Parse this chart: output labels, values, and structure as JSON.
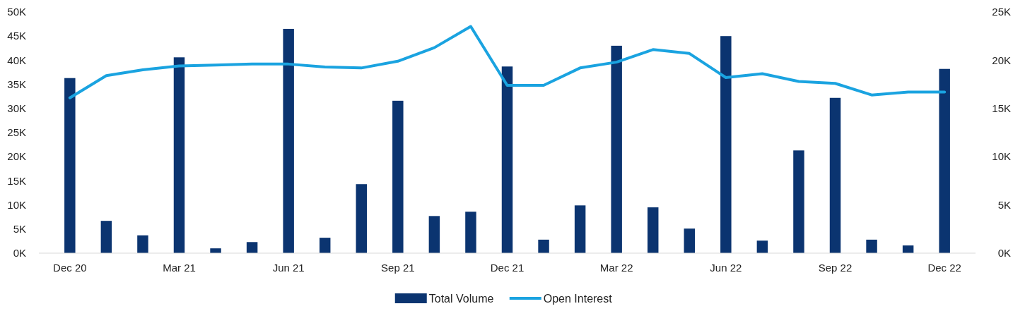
{
  "chart_data": {
    "type": "bar",
    "categories": [
      "Dec 20",
      null,
      null,
      "Mar 21",
      null,
      null,
      "Jun 21",
      null,
      null,
      "Sep 21",
      null,
      null,
      "Dec 21",
      null,
      null,
      "Mar 22",
      null,
      null,
      "Jun 22",
      null,
      null,
      "Sep 22",
      null,
      null,
      "Dec 22"
    ],
    "series": [
      {
        "name": "Total Volume",
        "color": "#0b3470",
        "values": [
          36.3,
          6.7,
          3.7,
          40.6,
          1.0,
          2.3,
          46.5,
          3.2,
          14.3,
          31.6,
          7.7,
          8.6,
          38.7,
          2.8,
          9.9,
          43.0,
          9.5,
          5.1,
          45.0,
          2.6,
          21.3,
          32.2,
          2.8,
          1.6,
          38.2
        ]
      },
      {
        "name": "Open Interest",
        "type": "line",
        "axis": "y2",
        "color": "#1aa3e0",
        "values": [
          16.1,
          18.4,
          19.0,
          19.4,
          19.5,
          19.6,
          19.6,
          19.3,
          19.2,
          19.9,
          21.3,
          23.5,
          17.4,
          17.4,
          19.2,
          19.8,
          21.1,
          20.7,
          18.2,
          18.6,
          17.8,
          17.6,
          16.4,
          16.7,
          16.7
        ]
      }
    ],
    "ylim": [
      0,
      50
    ],
    "yticks": [
      {
        "value": 0,
        "label": "0K"
      },
      {
        "value": 5,
        "label": "5K"
      },
      {
        "value": 10,
        "label": "10K"
      },
      {
        "value": 15,
        "label": "15K"
      },
      {
        "value": 20,
        "label": "20K"
      },
      {
        "value": 25,
        "label": "25K"
      },
      {
        "value": 30,
        "label": "30K"
      },
      {
        "value": 35,
        "label": "35K"
      },
      {
        "value": 40,
        "label": "40K"
      },
      {
        "value": 45,
        "label": "45K"
      },
      {
        "value": 50,
        "label": "50K"
      }
    ],
    "y2lim": [
      0,
      25
    ],
    "y2ticks": [
      {
        "value": 0,
        "label": "0K"
      },
      {
        "value": 5,
        "label": "5K"
      },
      {
        "value": 10,
        "label": "10K"
      },
      {
        "value": 15,
        "label": "15K"
      },
      {
        "value": 20,
        "label": "20K"
      },
      {
        "value": 25,
        "label": "25K"
      }
    ],
    "legend": "bottom",
    "marker": "none",
    "line_style": "solid",
    "grid": false
  }
}
